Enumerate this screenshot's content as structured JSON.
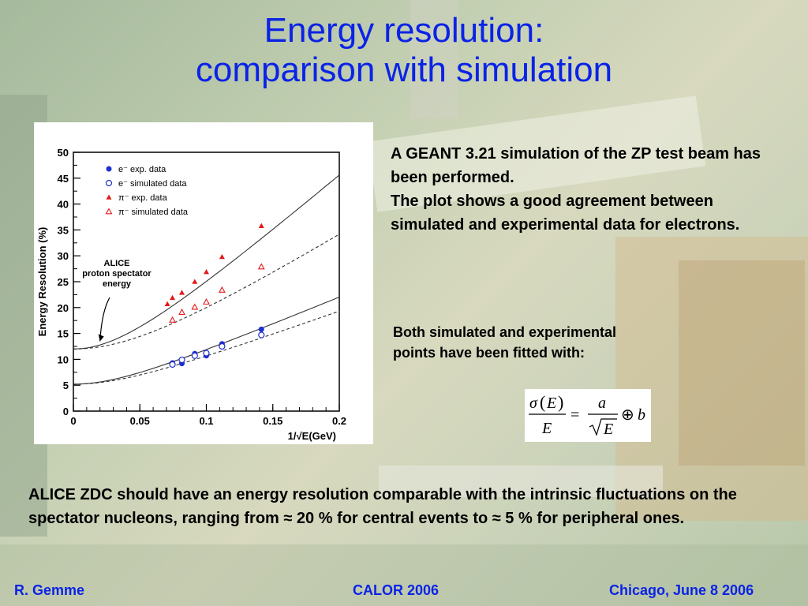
{
  "slide": {
    "title_line1": "Energy resolution:",
    "title_line2": "comparison with simulation",
    "description_line1": "A GEANT 3.21 simulation of the ZP test beam has been performed.",
    "description_line2": "The plot shows a good agreement between simulated and experimental data for electrons.",
    "fit_note": "Both simulated and experimental points have been fitted with:",
    "conclusion": "ALICE ZDC should have an energy resolution comparable with the intrinsic fluctuations on the spectator nucleons, ranging from ≈ 20 % for central events to ≈ 5 % for peripheral ones.",
    "footer_left": "R. Gemme",
    "footer_center": "CALOR 2006",
    "footer_right": "Chicago, June 8 2006"
  },
  "formula": {
    "sigma": "σ",
    "E_arg": "E",
    "denominator": "E",
    "equals": "=",
    "a": "a",
    "sqrt_E": "E",
    "oplus": "⊕",
    "b": "b"
  },
  "chart_data": {
    "type": "scatter",
    "xlabel": "1/√E(GeV)",
    "ylabel": "Energy Resolution (%)",
    "xlim": [
      0,
      0.2
    ],
    "ylim": [
      0,
      50
    ],
    "xticks": [
      "0",
      "0.05",
      "0.1",
      "0.15",
      "0.2"
    ],
    "yticks": [
      "0",
      "5",
      "10",
      "15",
      "20",
      "25",
      "30",
      "35",
      "40",
      "45",
      "50"
    ],
    "legend_position": "top-left",
    "annotation": {
      "lines": [
        "ALICE",
        "proton spectator",
        "energy"
      ],
      "arrow_to": [
        0.02,
        13.5
      ]
    },
    "series": [
      {
        "name": "e⁻ exp. data",
        "marker": "filled-circle",
        "color": "#1f2fd0",
        "x": [
          0.0745,
          0.0816,
          0.0913,
          0.1,
          0.1118,
          0.1414
        ],
        "y": [
          9.3,
          9.2,
          11.1,
          10.7,
          13.0,
          15.8
        ]
      },
      {
        "name": "e⁻ simulated data",
        "marker": "open-circle",
        "color": "#1f2fd0",
        "x": [
          0.0745,
          0.0816,
          0.0913,
          0.1,
          0.1118,
          0.1414
        ],
        "y": [
          9.0,
          9.9,
          10.7,
          11.2,
          12.5,
          14.7
        ]
      },
      {
        "name": "π⁻ exp. data",
        "marker": "filled-triangle",
        "color": "#e41a1a",
        "x": [
          0.0707,
          0.0745,
          0.0816,
          0.0913,
          0.1,
          0.1118,
          0.1414
        ],
        "y": [
          20.7,
          21.9,
          22.9,
          25.0,
          26.9,
          29.8,
          35.8
        ]
      },
      {
        "name": "π⁻ simulated data",
        "marker": "open-triangle",
        "color": "#e41a1a",
        "x": [
          0.0745,
          0.0816,
          0.0913,
          0.1,
          0.1118,
          0.1414
        ],
        "y": [
          17.6,
          19.1,
          20.1,
          21.1,
          23.4,
          27.9
        ]
      }
    ],
    "fits": [
      {
        "style": "solid",
        "a": 2.2,
        "b": 12.0,
        "x": [
          0,
          0.2
        ]
      },
      {
        "style": "dashed",
        "a": 1.6,
        "b": 12.0,
        "x": [
          0,
          0.2
        ]
      },
      {
        "style": "solid",
        "a": 1.07,
        "b": 5.2,
        "x": [
          0,
          0.2
        ]
      },
      {
        "style": "dashed",
        "a": 0.93,
        "b": 5.2,
        "x": [
          0,
          0.2
        ]
      }
    ]
  }
}
